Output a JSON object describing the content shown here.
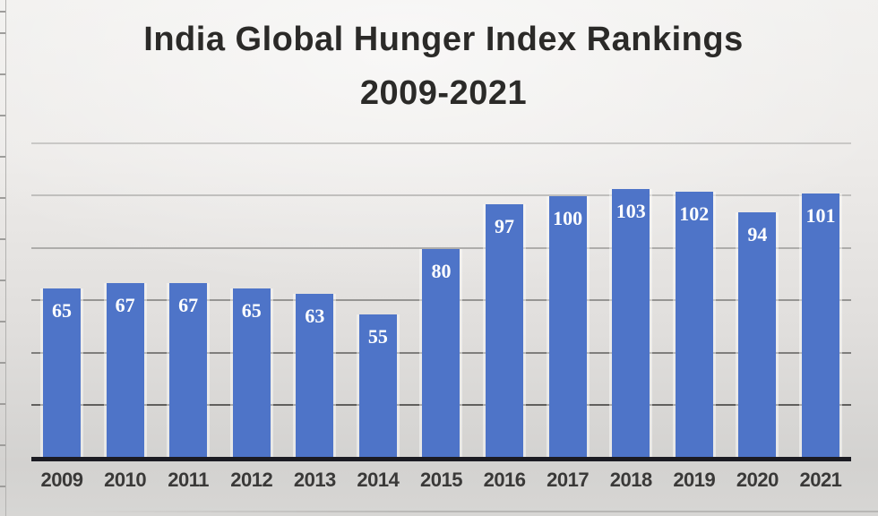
{
  "chart": {
    "title_line1": "India Global Hunger Index Rankings",
    "title_line2": "2009-2021"
  },
  "chart_data": {
    "type": "bar",
    "title": "India Global Hunger Index Rankings 2009-2021",
    "categories": [
      "2009",
      "2010",
      "2011",
      "2012",
      "2013",
      "2014",
      "2015",
      "2016",
      "2017",
      "2018",
      "2019",
      "2020",
      "2021"
    ],
    "values": [
      65,
      67,
      67,
      65,
      63,
      55,
      80,
      97,
      100,
      103,
      102,
      94,
      101
    ],
    "xlabel": "",
    "ylabel": "",
    "ylim": [
      0,
      122
    ],
    "y_axis_labels_shown": false,
    "gridlines": [
      20,
      40,
      60,
      80,
      100,
      120
    ],
    "grid": true,
    "legend": false,
    "data_label_position": "inside-end",
    "colors": {
      "bar": "#4e74c8",
      "data_label": "#ffffff",
      "axis_line": "#1b1b22",
      "tick_label": "#3a3938",
      "title": "#2b2a28"
    }
  }
}
